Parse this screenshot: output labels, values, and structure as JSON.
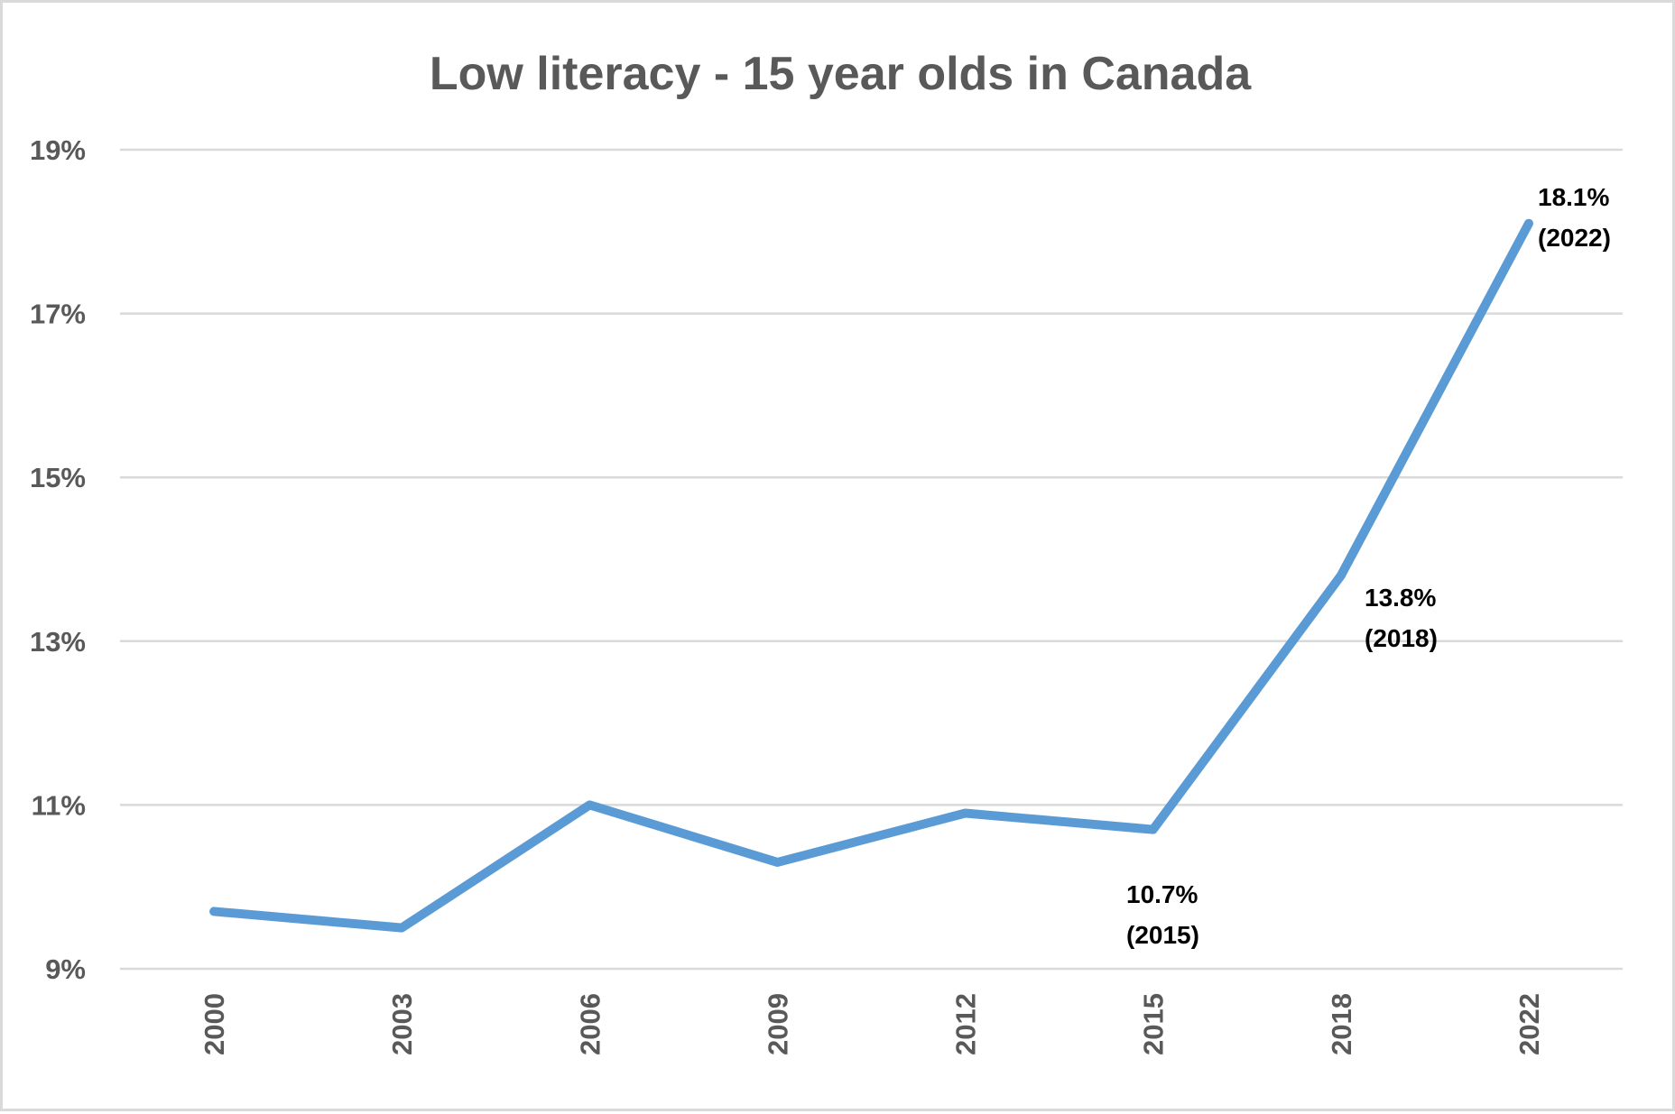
{
  "chart_data": {
    "type": "line",
    "title": "Low literacy - 15 year olds in Canada",
    "xlabel": "",
    "ylabel": "",
    "categories": [
      "2000",
      "2003",
      "2006",
      "2009",
      "2012",
      "2015",
      "2018",
      "2022"
    ],
    "values": [
      9.7,
      9.5,
      11.0,
      10.3,
      10.9,
      10.7,
      13.8,
      18.1
    ],
    "ylim": [
      9,
      19
    ],
    "yticks": [
      9,
      11,
      13,
      15,
      17,
      19
    ],
    "ytick_labels": [
      "9%",
      "11%",
      "13%",
      "15%",
      "17%",
      "19%"
    ],
    "grid": true,
    "legend": "none",
    "line_color": "#5b9bd5",
    "annotations": [
      {
        "category": "2015",
        "line1": "10.7%",
        "line2": "(2015)"
      },
      {
        "category": "2018",
        "line1": "13.8%",
        "line2": "(2018)"
      },
      {
        "category": "2022",
        "line1": "18.1%",
        "line2": "(2022)"
      }
    ]
  }
}
